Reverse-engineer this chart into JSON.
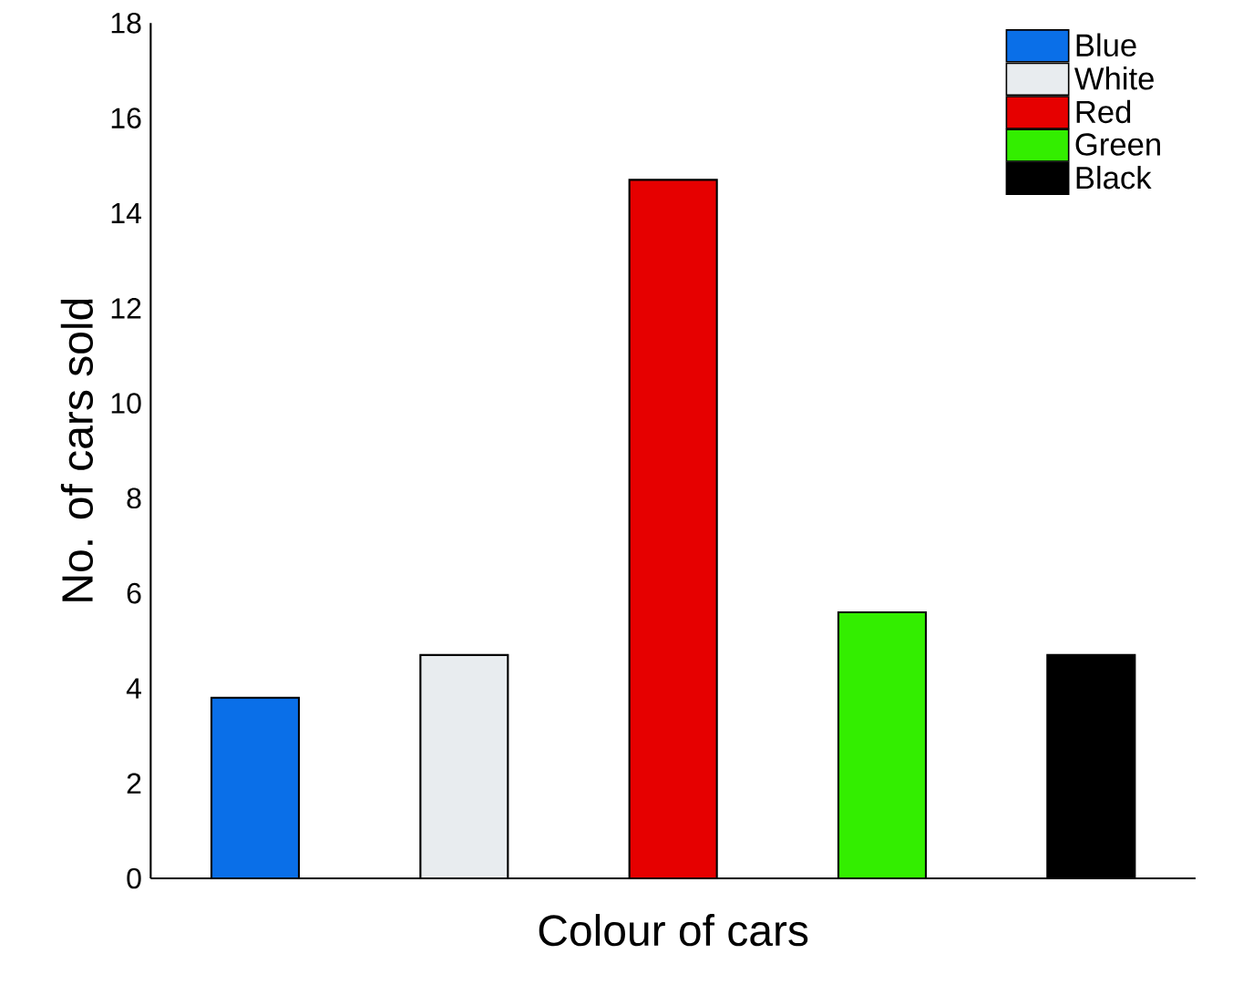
{
  "chart_data": {
    "type": "bar",
    "xlabel": "Colour of cars",
    "ylabel": "No. of cars sold",
    "categories": [
      null,
      null,
      null,
      null,
      null
    ],
    "series": [
      {
        "name": "Blue",
        "color": "#0a6fe8",
        "values": [
          3.8,
          null,
          null,
          null,
          null
        ]
      },
      {
        "name": "White",
        "color": "#e8ecef",
        "values": [
          null,
          4.7,
          null,
          null,
          null
        ]
      },
      {
        "name": "Red",
        "color": "#e60000",
        "values": [
          null,
          null,
          14.7,
          null,
          null
        ]
      },
      {
        "name": "Green",
        "color": "#33ee00",
        "values": [
          null,
          null,
          null,
          5.6,
          null
        ]
      },
      {
        "name": "Black",
        "color": "#000000",
        "values": [
          null,
          null,
          null,
          null,
          4.7
        ]
      }
    ],
    "ylim": [
      0,
      18
    ],
    "yticks": [
      0,
      2,
      4,
      6,
      8,
      10,
      12,
      14,
      16,
      18
    ],
    "grid": false,
    "legend": "top right"
  }
}
